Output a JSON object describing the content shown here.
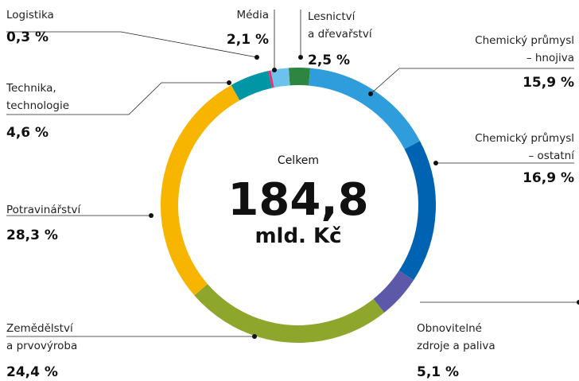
{
  "chart_data": {
    "type": "donut",
    "categories": [
      "Lesnictví\na dřevařství",
      "Chemický průmysl\n– hnojiva",
      "Chemický průmysl\n– ostatní",
      "Obnovitelné\nzdroje a paliva",
      "Zemědělství\na prvovýroba",
      "Potravinářství",
      "Technika,\ntechnologie",
      "Logistika",
      "Média"
    ],
    "values": [
      2.5,
      15.9,
      16.9,
      5.1,
      24.4,
      28.3,
      4.6,
      0.3,
      2.1
    ],
    "value_labels": [
      "2,5 %",
      "15,9 %",
      "16,9 %",
      "5,1 %",
      "24,4 %",
      "28,3 %",
      "4,6 %",
      "0,3 %",
      "2,1 %"
    ],
    "colors": [
      "#2e8540",
      "#2f9ddc",
      "#0063b1",
      "#5c5aa8",
      "#8da62b",
      "#f7b500",
      "#0096a6",
      "#e6336f",
      "#6cc2ec"
    ],
    "center": {
      "caption": "Celkem",
      "value": "184,8",
      "unit": "mld. Kč"
    }
  }
}
